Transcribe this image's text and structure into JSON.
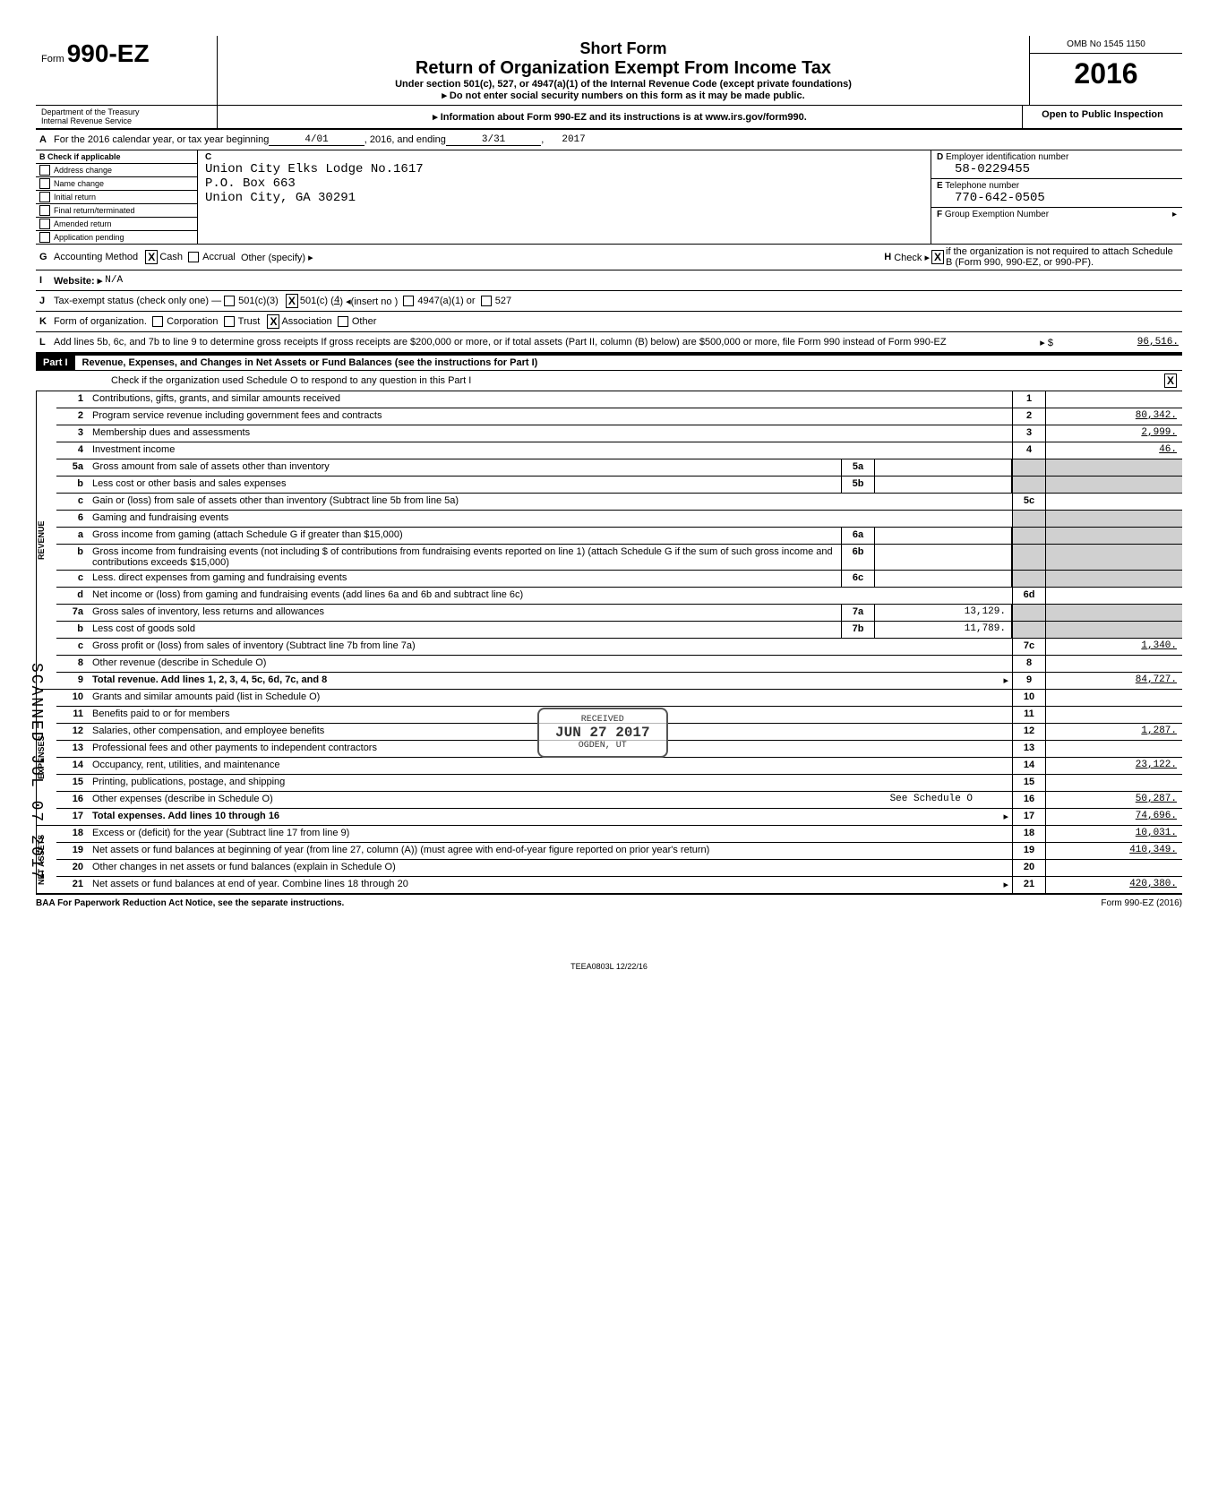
{
  "header": {
    "form_prefix": "Form",
    "form_number": "990-EZ",
    "short_form": "Short Form",
    "title": "Return of Organization Exempt From Income Tax",
    "subtitle1": "Under section 501(c), 527, or 4947(a)(1) of the Internal Revenue Code (except private foundations)",
    "subtitle2": "▸ Do not enter social security numbers on this form as it may be made public.",
    "omb": "OMB No 1545 1150",
    "year": "2016",
    "dept": "Department of the Treasury\nInternal Revenue Service",
    "info": "▸ Information about Form 990-EZ and its instructions is at www.irs.gov/form990.",
    "open": "Open to Public Inspection"
  },
  "line_a": {
    "label": "A",
    "text1": "For the 2016 calendar year, or tax year beginning",
    "begin": "4/01",
    "text2": ", 2016, and ending",
    "end": "3/31",
    "text3": ",",
    "end_year": "2017"
  },
  "box_b": {
    "label": "B",
    "head": "Check if applicable",
    "items": [
      "Address change",
      "Name change",
      "Initial return",
      "Final return/terminated",
      "Amended return",
      "Application pending"
    ]
  },
  "box_c": {
    "label": "C",
    "name": "Union City  Elks Lodge No.1617",
    "addr1": "P.O. Box 663",
    "addr2": "Union City, GA 30291"
  },
  "box_d": {
    "label": "D",
    "title": "Employer identification number",
    "value": "58-0229455"
  },
  "box_e": {
    "label": "E",
    "title": "Telephone number",
    "value": "770-642-0505"
  },
  "box_f": {
    "label": "F",
    "title": "Group Exemption Number",
    "arrow": "▸"
  },
  "line_g": {
    "label": "G",
    "text": "Accounting Method",
    "cash_x": "X",
    "opts": [
      "Cash",
      "Accrual",
      "Other (specify) ▸"
    ]
  },
  "line_h": {
    "label": "H",
    "text": "Check ▸",
    "x": "X",
    "rest": "if the organization is not required to attach Schedule B (Form 990, 990-EZ, or 990-PF)."
  },
  "line_i": {
    "label": "I",
    "text": "Website: ▸",
    "value": "N/A"
  },
  "line_j": {
    "label": "J",
    "text": "Tax-exempt status (check only one) —",
    "opt1": "501(c)(3)",
    "opt2_x": "X",
    "opt2": "501(c) (",
    "opt2_num": "4",
    "opt2_suffix": ") ◂(insert no )",
    "opt3": "4947(a)(1) or",
    "opt4": "527"
  },
  "line_k": {
    "label": "K",
    "text": "Form of organization.",
    "opts": [
      "Corporation",
      "Trust",
      "Association",
      "Other"
    ],
    "assoc_x": "X"
  },
  "line_l": {
    "label": "L",
    "text": "Add lines 5b, 6c, and 7b to line 9 to determine gross receipts  If gross receipts are $200,000 or more, or if total assets (Part II, column (B) below) are $500,000 or more, file Form 990 instead of Form 990-EZ",
    "arrow": "▸ $",
    "value": "96,516."
  },
  "part1": {
    "label": "Part I",
    "title": "Revenue, Expenses, and Changes in Net Assets or Fund Balances (see the instructions for Part I)",
    "check_text": "Check if the organization used Schedule O to respond to any question in this Part I",
    "check_x": "X"
  },
  "revenue": [
    {
      "n": "1",
      "desc": "Contributions, gifts, grants, and similar amounts received",
      "rn": "1",
      "val": ""
    },
    {
      "n": "2",
      "desc": "Program service revenue including government fees and contracts",
      "rn": "2",
      "val": "80,342."
    },
    {
      "n": "3",
      "desc": "Membership dues and assessments",
      "rn": "3",
      "val": "2,999."
    },
    {
      "n": "4",
      "desc": "Investment income",
      "rn": "4",
      "val": "46."
    },
    {
      "n": "5a",
      "desc": "Gross amount from sale of assets other than inventory",
      "mid_n": "5a",
      "mid_v": "",
      "rn": "",
      "val": "",
      "grey": true
    },
    {
      "n": "b",
      "desc": "Less  cost or other basis and sales expenses",
      "mid_n": "5b",
      "mid_v": "",
      "rn": "",
      "val": "",
      "grey": true
    },
    {
      "n": "c",
      "desc": "Gain or (loss) from sale of assets other than inventory (Subtract line 5b from line 5a)",
      "rn": "5c",
      "val": ""
    },
    {
      "n": "6",
      "desc": "Gaming and fundraising events",
      "rn": "",
      "val": "",
      "grey": true
    },
    {
      "n": "a",
      "desc": "Gross income from gaming (attach Schedule G if greater than $15,000)",
      "mid_n": "6a",
      "mid_v": "",
      "rn": "",
      "val": "",
      "grey": true
    },
    {
      "n": "b",
      "desc": "Gross income from fundraising events (not including  $                                 of contributions from fundraising events reported on line 1) (attach Schedule G if the sum of such gross income and contributions exceeds $15,000)",
      "mid_n": "6b",
      "mid_v": "",
      "rn": "",
      "val": "",
      "grey": true
    },
    {
      "n": "c",
      "desc": "Less. direct expenses from gaming and fundraising events",
      "mid_n": "6c",
      "mid_v": "",
      "rn": "",
      "val": "",
      "grey": true
    },
    {
      "n": "d",
      "desc": "Net income or (loss) from gaming and fundraising events (add lines 6a and 6b and subtract line 6c)",
      "rn": "6d",
      "val": ""
    },
    {
      "n": "7a",
      "desc": "Gross sales of inventory, less returns and allowances",
      "mid_n": "7a",
      "mid_v": "13,129.",
      "rn": "",
      "val": "",
      "grey": true
    },
    {
      "n": "b",
      "desc": "Less  cost of goods sold",
      "mid_n": "7b",
      "mid_v": "11,789.",
      "rn": "",
      "val": "",
      "grey": true
    },
    {
      "n": "c",
      "desc": "Gross profit or (loss) from sales of inventory (Subtract line 7b from line 7a)",
      "rn": "7c",
      "val": "1,340."
    },
    {
      "n": "8",
      "desc": "Other revenue (describe in Schedule O)",
      "rn": "8",
      "val": ""
    },
    {
      "n": "9",
      "desc": "Total revenue. Add lines 1, 2, 3, 4, 5c, 6d, 7c, and 8",
      "rn": "9",
      "val": "84,727.",
      "bold": true,
      "arrow": true
    }
  ],
  "expenses": [
    {
      "n": "10",
      "desc": "Grants and similar amounts paid (list in Schedule O)",
      "rn": "10",
      "val": ""
    },
    {
      "n": "11",
      "desc": "Benefits paid to or for members",
      "rn": "11",
      "val": ""
    },
    {
      "n": "12",
      "desc": "Salaries, other compensation, and employee benefits",
      "rn": "12",
      "val": "1,287."
    },
    {
      "n": "13",
      "desc": "Professional fees and other payments to independent contractors",
      "rn": "13",
      "val": ""
    },
    {
      "n": "14",
      "desc": "Occupancy, rent, utilities, and maintenance",
      "rn": "14",
      "val": "23,122."
    },
    {
      "n": "15",
      "desc": "Printing, publications, postage, and shipping",
      "rn": "15",
      "val": ""
    },
    {
      "n": "16",
      "desc": "Other expenses (describe in Schedule O)",
      "extra": "See Schedule O",
      "rn": "16",
      "val": "50,287."
    },
    {
      "n": "17",
      "desc": "Total expenses. Add lines 10 through 16",
      "rn": "17",
      "val": "74,696.",
      "bold": true,
      "arrow": true
    }
  ],
  "netassets": [
    {
      "n": "18",
      "desc": "Excess or (deficit) for the year (Subtract line 17 from line 9)",
      "rn": "18",
      "val": "10,031."
    },
    {
      "n": "19",
      "desc": "Net assets or fund balances at beginning of year (from line 27, column (A)) (must agree with end-of-year figure reported on prior year's return)",
      "rn": "19",
      "val": "410,349."
    },
    {
      "n": "20",
      "desc": "Other changes in net assets or fund balances (explain in Schedule O)",
      "rn": "20",
      "val": ""
    },
    {
      "n": "21",
      "desc": "Net assets or fund balances at end of year. Combine lines 18 through 20",
      "rn": "21",
      "val": "420,380.",
      "arrow": true
    }
  ],
  "side_labels": {
    "revenue": "REVENUE",
    "expenses": "EXPENSES",
    "netassets": "NET ASSETS"
  },
  "stamp": {
    "line1": "RECEIVED",
    "line2": "JUN 27 2017",
    "line3": "OGDEN, UT"
  },
  "scanned": "SCANNED JUL 07 2017",
  "footer": {
    "left": "BAA For Paperwork Reduction Act Notice, see the separate instructions.",
    "right": "Form 990-EZ (2016)"
  },
  "teea": "TEEA0803L   12/22/16",
  "colors": {
    "grey": "#d0d0d0",
    "black": "#000000"
  }
}
